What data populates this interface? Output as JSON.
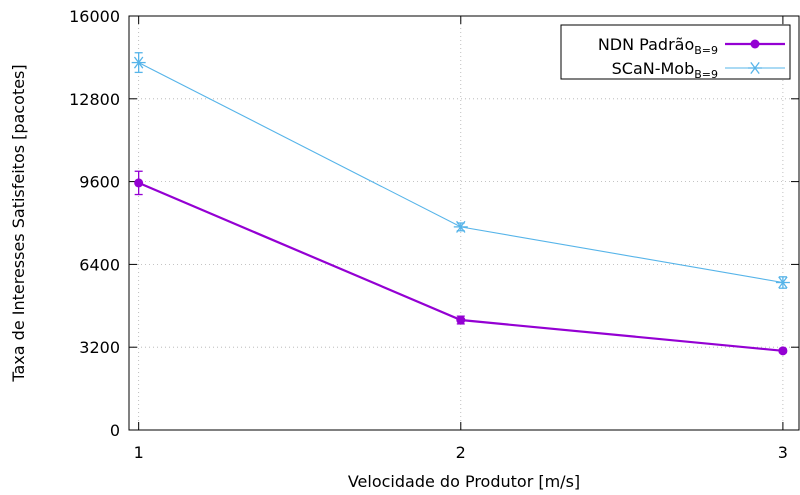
{
  "chart_data": {
    "type": "line",
    "xlabel": "Velocidade do Produtor [m/s]",
    "ylabel": "Taxa de Interesses Satisfeitos [pacotes]",
    "x": [
      1,
      2,
      3
    ],
    "xlim": [
      0.97,
      3.05
    ],
    "ylim": [
      0,
      16000
    ],
    "xticks": [
      "1",
      "2",
      "3"
    ],
    "yticks": [
      "0",
      "3200",
      "6400",
      "9600",
      "12800",
      "16000"
    ],
    "ytick_values": [
      0,
      3200,
      6400,
      9600,
      12800,
      16000
    ],
    "grid": true,
    "legend_position": "top-right",
    "series": [
      {
        "name": "NDN Padrão",
        "name_sub": "B=9",
        "color": "#9400d3",
        "marker": "circle",
        "values": [
          9550,
          4250,
          3060
        ],
        "err": [
          450,
          150,
          70
        ]
      },
      {
        "name": "SCaN-Mob",
        "name_sub": "B=9",
        "color": "#56b4e9",
        "marker": "asterisk",
        "values": [
          14200,
          7850,
          5700
        ],
        "err": [
          380,
          150,
          220
        ]
      }
    ]
  }
}
